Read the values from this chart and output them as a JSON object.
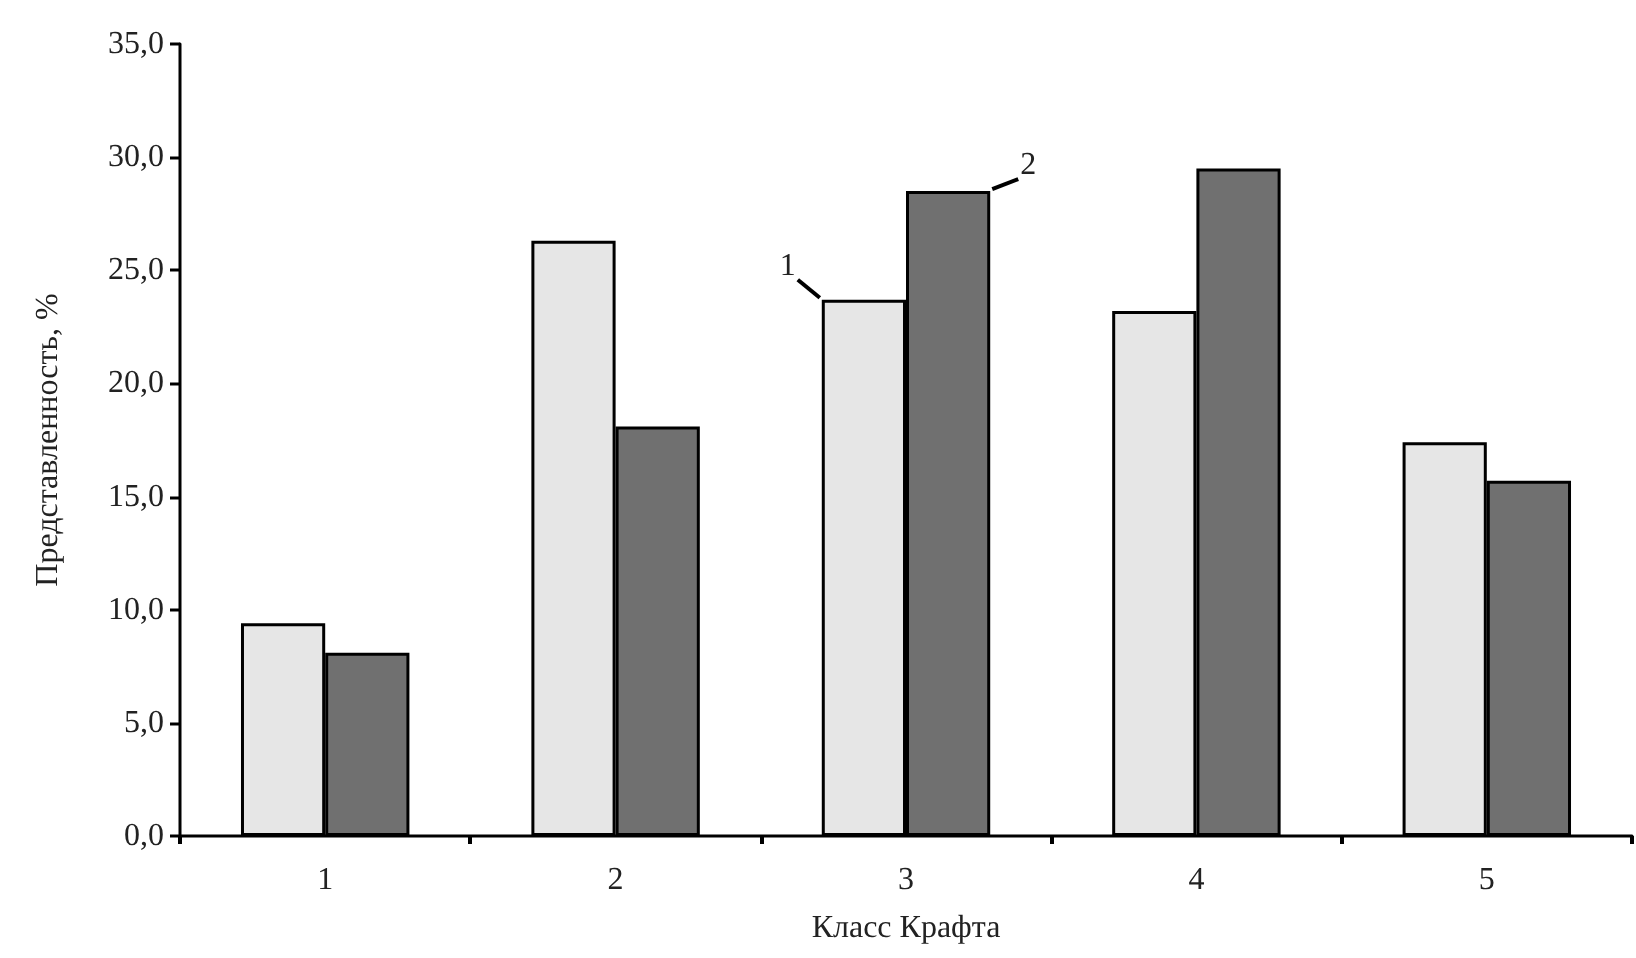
{
  "chart_data": {
    "type": "bar",
    "xlabel": "Класс Крафта",
    "ylabel": "Представленность, %",
    "categories": [
      "1",
      "2",
      "3",
      "4",
      "5"
    ],
    "series": [
      {
        "color": "#e6e6e6",
        "values": [
          9.4,
          26.3,
          23.7,
          23.2,
          17.4
        ]
      },
      {
        "color": "#707070",
        "values": [
          8.1,
          18.1,
          28.5,
          29.5,
          15.7
        ]
      }
    ],
    "ylim": [
      0,
      35
    ],
    "yticks": [
      {
        "value": 0,
        "label": "0,0"
      },
      {
        "value": 5,
        "label": "5,0"
      },
      {
        "value": 10,
        "label": "10,0"
      },
      {
        "value": 15,
        "label": "15,0"
      },
      {
        "value": 20,
        "label": "20,0"
      },
      {
        "value": 25,
        "label": "25,0"
      },
      {
        "value": 30,
        "label": "30,0"
      },
      {
        "value": 35,
        "label": "35,0"
      }
    ],
    "annotations": [
      "1",
      "2"
    ],
    "grid": false
  }
}
